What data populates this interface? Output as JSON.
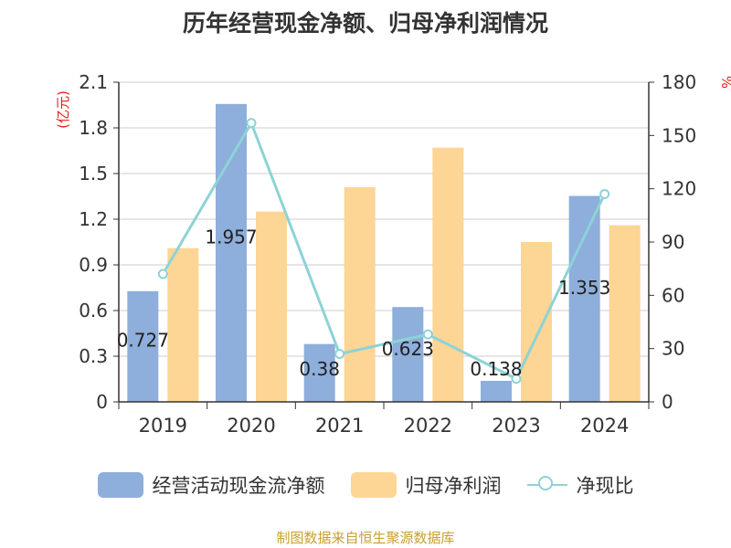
{
  "chart_data": {
    "type": "bar+line",
    "title": "历年经营现金净额、归母净利润情况",
    "left_unit": "(亿元)",
    "right_unit": "%",
    "categories": [
      "2019",
      "2020",
      "2021",
      "2022",
      "2023",
      "2024"
    ],
    "left_ylim": [
      0,
      2.1
    ],
    "left_ticks": [
      "0",
      "0.3",
      "0.6",
      "0.9",
      "1.2",
      "1.5",
      "1.8",
      "2.1"
    ],
    "right_ylim": [
      0,
      180
    ],
    "right_ticks": [
      "0",
      "30",
      "60",
      "90",
      "120",
      "150",
      "180"
    ],
    "grid": true,
    "legend_position": "bottom",
    "series": [
      {
        "name": "经营活动现金流净额",
        "type": "bar",
        "axis": "left",
        "color": "#8eaedb",
        "values": [
          0.727,
          1.957,
          0.38,
          0.623,
          0.138,
          1.353
        ],
        "labels": [
          "0.727",
          "1.957",
          "0.38",
          "0.623",
          "0.138",
          "1.353"
        ]
      },
      {
        "name": "归母净利润",
        "type": "bar",
        "axis": "left",
        "color": "#fdd595",
        "values": [
          1.01,
          1.25,
          1.41,
          1.67,
          1.05,
          1.16
        ]
      },
      {
        "name": "净现比",
        "type": "line",
        "axis": "right",
        "color": "#8dd3d6",
        "values": [
          72,
          157,
          27,
          38,
          13,
          117
        ]
      }
    ]
  },
  "source": "制图数据来自恒生聚源数据库"
}
